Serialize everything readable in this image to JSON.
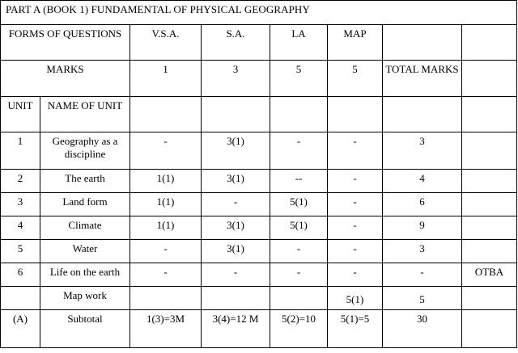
{
  "title": "PART A (BOOK 1)   FUNDAMENTAL OF  PHYSICAL GEOGRAPHY",
  "header_row": {
    "forms": "FORMS OF QUESTIONS",
    "vsa": "V.S.A.",
    "sa": "S.A.",
    "la": "LA",
    "map": "MAP",
    "blank1": "",
    "blank2": ""
  },
  "marks_row": {
    "label": "MARKS",
    "vsa": "1",
    "sa": "3",
    "la": "5",
    "map": "5",
    "total": "TOTAL MARKS",
    "blank": ""
  },
  "unit_header": {
    "unit": "UNIT",
    "name": "NAME OF UNIT"
  },
  "rows": [
    {
      "unit": "1",
      "name": "Geography as a discipline",
      "vsa": "-",
      "sa": "3(1)",
      "la": "-",
      "map": "-",
      "total": "3",
      "extra": ""
    },
    {
      "unit": "2",
      "name": "The earth",
      "vsa": "1(1)",
      "sa": "3(1)",
      "la": "--",
      "map": "-",
      "total": "4",
      "extra": ""
    },
    {
      "unit": "3",
      "name": "Land form",
      "vsa": "1(1)",
      "sa": "-",
      "la": "5(1)",
      "map": "-",
      "total": "6",
      "extra": ""
    },
    {
      "unit": "4",
      "name": "Climate",
      "vsa": "1(1)",
      "sa": "3(1)",
      "la": "5(1)",
      "map": "-",
      "total": "9",
      "extra": ""
    },
    {
      "unit": "5",
      "name": "Water",
      "vsa": "-",
      "sa": "3(1)",
      "la": "-",
      "map": "-",
      "total": "3",
      "extra": ""
    },
    {
      "unit": "6",
      "name": "Life on the earth",
      "vsa": "-",
      "sa": "-",
      "la": "-",
      "map": "-",
      "total": "-",
      "extra": "OTBA"
    },
    {
      "unit": "",
      "name": "Map work",
      "vsa": "",
      "sa": "",
      "la": "",
      "map": "5(1)",
      "total": "5",
      "extra": ""
    },
    {
      "unit": "(A)",
      "name": "Subtotal",
      "vsa": "1(3)=3M",
      "sa": "3(4)=12 M",
      "la": "5(2)=10",
      "map": "5(1)=5",
      "total": "30",
      "extra": ""
    }
  ]
}
